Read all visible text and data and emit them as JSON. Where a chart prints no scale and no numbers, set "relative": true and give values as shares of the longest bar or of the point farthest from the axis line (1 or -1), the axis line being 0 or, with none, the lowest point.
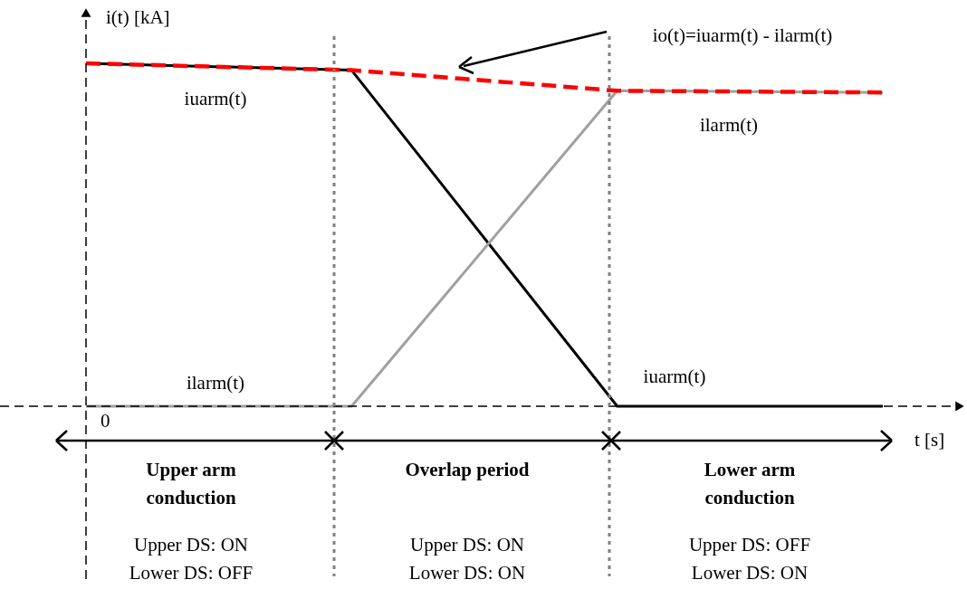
{
  "chart_data": {
    "type": "line",
    "relative": true,
    "ylabel": "i(t) [kA]",
    "xlabel": "t [s]",
    "categories": [
      null,
      null,
      null,
      null
    ],
    "series": [
      {
        "name": "iuarm(t)",
        "color": "#000000",
        "values": [
          1.0,
          0.98,
          0.0,
          0.0
        ]
      },
      {
        "name": "ilarm(t)",
        "color": "#a0a0a0",
        "values": [
          0.0,
          0.0,
          0.92,
          0.915
        ]
      },
      {
        "name": "io(t)=iuarm(t) - ilarm(t)",
        "color": "#ff0000",
        "line_style": "dashed",
        "values": [
          1.0,
          0.98,
          0.92,
          0.915
        ]
      }
    ],
    "annotations": [
      "0",
      "iuarm(t)",
      "ilarm(t)",
      "Upper arm\nconduction",
      "Overlap period",
      "Lower arm\nconduction",
      "Upper DS: ON\nLower DS: OFF",
      "Upper DS: ON\nLower DS: ON",
      "Upper DS: OFF\nLower DS: ON"
    ],
    "marker": "none"
  }
}
